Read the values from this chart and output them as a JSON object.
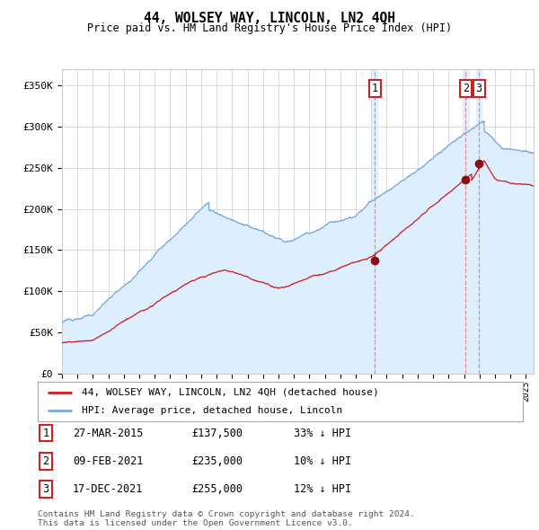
{
  "title": "44, WOLSEY WAY, LINCOLN, LN2 4QH",
  "subtitle": "Price paid vs. HM Land Registry's House Price Index (HPI)",
  "legend_line1": "44, WOLSEY WAY, LINCOLN, LN2 4QH (detached house)",
  "legend_line2": "HPI: Average price, detached house, Lincoln",
  "footer": "Contains HM Land Registry data © Crown copyright and database right 2024.\nThis data is licensed under the Open Government Licence v3.0.",
  "sales": [
    {
      "num": "1",
      "date": "27-MAR-2015",
      "price": 137500,
      "pct": "33%",
      "dir": "↓",
      "x_year": 2015.23
    },
    {
      "num": "2",
      "date": "09-FEB-2021",
      "price": 235000,
      "pct": "10%",
      "dir": "↓",
      "x_year": 2021.11
    },
    {
      "num": "3",
      "date": "17-DEC-2021",
      "price": 255000,
      "pct": "12%",
      "dir": "↓",
      "x_year": 2021.96
    }
  ],
  "hpi_color": "#7aaadd",
  "hpi_fill_color": "#ddeeff",
  "price_color": "#cc2222",
  "dashed_line_color": "#ee8888",
  "marker_color": "#881111",
  "ylim": [
    0,
    370000
  ],
  "xlim_start": 1995.0,
  "xlim_end": 2025.5,
  "yticks": [
    0,
    50000,
    100000,
    150000,
    200000,
    250000,
    300000,
    350000
  ],
  "ytick_labels": [
    "£0",
    "£50K",
    "£100K",
    "£150K",
    "£200K",
    "£250K",
    "£300K",
    "£350K"
  ],
  "xticks": [
    1995,
    1996,
    1997,
    1998,
    1999,
    2000,
    2001,
    2002,
    2003,
    2004,
    2005,
    2006,
    2007,
    2008,
    2009,
    2010,
    2011,
    2012,
    2013,
    2014,
    2015,
    2016,
    2017,
    2018,
    2019,
    2020,
    2021,
    2022,
    2023,
    2024,
    2025
  ],
  "background_color": "#ffffff",
  "grid_color": "#cccccc"
}
